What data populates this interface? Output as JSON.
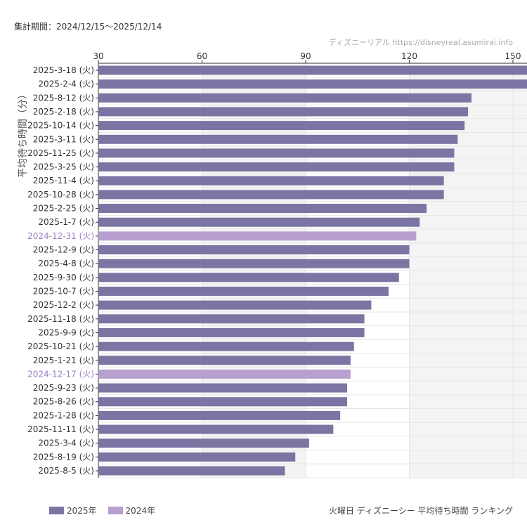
{
  "header": {
    "period": "集計期間：2024/12/15〜2025/12/14",
    "credit": "ディズニーリアル https://disneyreal.asumirai.info"
  },
  "footer": {
    "caption": "火曜日 ディズニーシー 平均待ち時間 ランキング"
  },
  "colors": {
    "2025": "#7b75a3",
    "2024": "#b7a0d0",
    "label2024": "#9b7fc4"
  },
  "chart_data": {
    "type": "bar",
    "orientation": "horizontal",
    "title": "",
    "ylabel": "平均待ち時間（分）",
    "xlim": [
      30,
      150
    ],
    "xticks": [
      30,
      60,
      90,
      120,
      150
    ],
    "grid": true,
    "legend_placement": "bottom-left",
    "legend": [
      {
        "name": "2025年",
        "color": "#7b75a3"
      },
      {
        "name": "2024年",
        "color": "#b7a0d0"
      }
    ],
    "categories": [
      "2025-3-18 (火)",
      "2025-2-4 (火)",
      "2025-8-12 (火)",
      "2025-2-18 (火)",
      "2025-10-14 (火)",
      "2025-3-11 (火)",
      "2025-11-25 (火)",
      "2025-3-25 (火)",
      "2025-11-4 (火)",
      "2025-10-28 (火)",
      "2025-2-25 (火)",
      "2025-1-7 (火)",
      "2024-12-31 (火)",
      "2025-12-9 (火)",
      "2025-4-8 (火)",
      "2025-9-30 (火)",
      "2025-10-7 (火)",
      "2025-12-2 (火)",
      "2025-11-18 (火)",
      "2025-9-9 (火)",
      "2025-10-21 (火)",
      "2025-1-21 (火)",
      "2024-12-17 (火)",
      "2025-9-23 (火)",
      "2025-8-26 (火)",
      "2025-1-28 (火)",
      "2025-11-11 (火)",
      "2025-3-4 (火)",
      "2025-8-19 (火)",
      "2025-8-5 (火)"
    ],
    "values": [
      155,
      155,
      138,
      137,
      136,
      134,
      133,
      133,
      130,
      130,
      125,
      123,
      122,
      120,
      120,
      117,
      114,
      109,
      107,
      107,
      104,
      103,
      103,
      102,
      102,
      100,
      98,
      91,
      87,
      84
    ],
    "series_of": [
      "2025",
      "2025",
      "2025",
      "2025",
      "2025",
      "2025",
      "2025",
      "2025",
      "2025",
      "2025",
      "2025",
      "2025",
      "2024",
      "2025",
      "2025",
      "2025",
      "2025",
      "2025",
      "2025",
      "2025",
      "2025",
      "2025",
      "2024",
      "2025",
      "2025",
      "2025",
      "2025",
      "2025",
      "2025",
      "2025"
    ]
  }
}
